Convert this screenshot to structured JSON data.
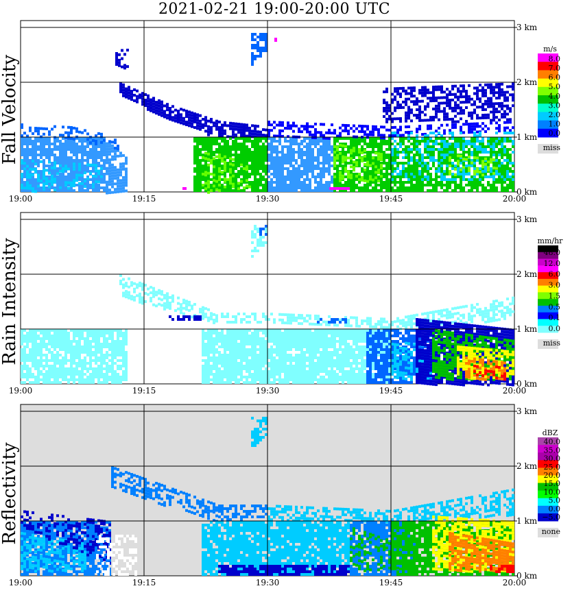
{
  "title": "2021-02-21   19:00-20:00 UTC",
  "chart_data": [
    {
      "type": "heatmap",
      "title": "Fall Velocity",
      "x_ticks": [
        "19:00",
        "19:15",
        "19:30",
        "19:45",
        "20:00"
      ],
      "y_ticks": [
        "0 km",
        "1 km",
        "2 km",
        "3 km"
      ],
      "xlim": [
        "19:00",
        "20:00"
      ],
      "ylim": [
        0,
        3.2
      ],
      "grid": true,
      "background": "#ffffff",
      "legend": {
        "unit": "m/s",
        "labels": [
          "8.0",
          "7.0",
          "6.0",
          "5.0",
          "4.0",
          "3.0",
          "2.0",
          "1.0",
          "0.0"
        ],
        "colors": [
          "#ff00ff",
          "#ff0000",
          "#ff7f00",
          "#ffff00",
          "#7fff00",
          "#00c000",
          "#00ffcc",
          "#00ccff",
          "#0080ff",
          "#0000ff"
        ],
        "missing_label": "miss",
        "missing_color": "#dddddd"
      }
    },
    {
      "type": "heatmap",
      "title": "Rain Intensity",
      "x_ticks": [
        "19:00",
        "19:15",
        "19:30",
        "19:45",
        "20:00"
      ],
      "y_ticks": [
        "0 km",
        "1 km",
        "2 km",
        "3 km"
      ],
      "xlim": [
        "19:00",
        "20:00"
      ],
      "ylim": [
        0,
        3.2
      ],
      "grid": true,
      "background": "#ffffff",
      "legend": {
        "unit": "mm/hr",
        "labels": [
          "48.0",
          "12.0",
          "6.0",
          "3.0",
          "1.5",
          "0.5",
          "0.1",
          "0.0"
        ],
        "colors": [
          "#000000",
          "#7f007f",
          "#cc00cc",
          "#ff00ff",
          "#ff0000",
          "#ff7f00",
          "#ffff00",
          "#7fff00",
          "#00c000",
          "#0080ff",
          "#0000ff",
          "#00ffff",
          "#80ffff"
        ],
        "missing_label": "miss",
        "missing_color": "#dddddd"
      }
    },
    {
      "type": "heatmap",
      "title": "Reflectivity",
      "x_ticks": [
        "19:00",
        "19:15",
        "19:30",
        "19:45",
        "20:00"
      ],
      "y_ticks": [
        "0 km",
        "1 km",
        "2 km",
        "3 km"
      ],
      "xlim": [
        "19:00",
        "20:00"
      ],
      "ylim": [
        0,
        3.2
      ],
      "grid": true,
      "background": "#dddddd",
      "legend": {
        "unit": "dBZ",
        "labels": [
          "40.0",
          "35.0",
          "30.0",
          "25.0",
          "20.0",
          "15.0",
          "10.0",
          "5.0",
          "0.0",
          "−5.0"
        ],
        "colors": [
          "#aa44aa",
          "#cc00cc",
          "#aa00aa",
          "#ff0000",
          "#ff7f00",
          "#ffff00",
          "#00c000",
          "#00ff00",
          "#00ffff",
          "#0080ff",
          "#0000cc"
        ],
        "missing_label": "none",
        "missing_color": "#dddddd"
      }
    }
  ]
}
